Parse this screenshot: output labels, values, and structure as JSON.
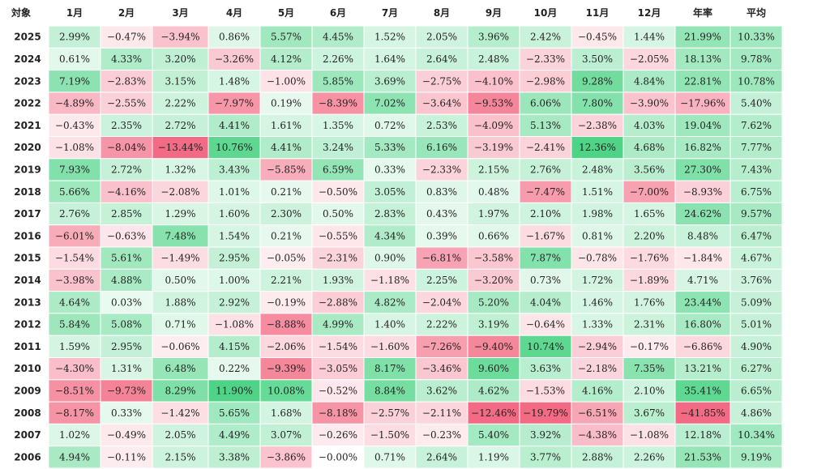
{
  "chart_data": {
    "type": "heatmap",
    "corner_label": "対象",
    "columns": [
      "1月",
      "2月",
      "3月",
      "4月",
      "5月",
      "6月",
      "7月",
      "8月",
      "9月",
      "10月",
      "11月",
      "12月",
      "年率",
      "平均"
    ],
    "rows": [
      {
        "year": "2025",
        "values": [
          "2.99%",
          "−0.47%",
          "−3.94%",
          "0.86%",
          "5.57%",
          "4.45%",
          "1.52%",
          "2.05%",
          "3.96%",
          "2.42%",
          "−0.45%",
          "1.44%",
          "21.99%",
          "10.33%"
        ]
      },
      {
        "year": "2024",
        "values": [
          "0.61%",
          "4.33%",
          "3.20%",
          "−3.26%",
          "4.12%",
          "2.26%",
          "1.64%",
          "2.64%",
          "2.48%",
          "−2.33%",
          "3.50%",
          "−2.05%",
          "18.13%",
          "9.78%"
        ]
      },
      {
        "year": "2023",
        "values": [
          "7.19%",
          "−2.83%",
          "3.15%",
          "1.48%",
          "−1.00%",
          "5.85%",
          "3.69%",
          "−2.75%",
          "−4.10%",
          "−2.98%",
          "9.28%",
          "4.84%",
          "22.81%",
          "10.78%"
        ]
      },
      {
        "year": "2022",
        "values": [
          "−4.89%",
          "−2.55%",
          "2.22%",
          "−7.97%",
          "0.19%",
          "−8.39%",
          "7.02%",
          "−3.64%",
          "−9.53%",
          "6.06%",
          "7.80%",
          "−3.90%",
          "−17.96%",
          "5.40%"
        ]
      },
      {
        "year": "2021",
        "values": [
          "−0.43%",
          "2.35%",
          "2.72%",
          "4.41%",
          "1.61%",
          "1.35%",
          "0.72%",
          "2.53%",
          "−4.09%",
          "5.13%",
          "−2.38%",
          "4.03%",
          "19.04%",
          "7.62%"
        ]
      },
      {
        "year": "2020",
        "values": [
          "−1.08%",
          "−8.04%",
          "−13.44%",
          "10.76%",
          "4.41%",
          "3.24%",
          "5.33%",
          "6.16%",
          "−3.19%",
          "−2.41%",
          "12.36%",
          "4.68%",
          "16.82%",
          "7.77%"
        ]
      },
      {
        "year": "2019",
        "values": [
          "7.93%",
          "2.72%",
          "1.32%",
          "3.43%",
          "−5.85%",
          "6.59%",
          "0.33%",
          "−2.33%",
          "2.15%",
          "2.76%",
          "2.48%",
          "3.56%",
          "27.30%",
          "7.43%"
        ]
      },
      {
        "year": "2018",
        "values": [
          "5.66%",
          "−4.16%",
          "−2.08%",
          "1.01%",
          "0.21%",
          "−0.50%",
          "3.05%",
          "0.83%",
          "0.48%",
          "−7.47%",
          "1.51%",
          "−7.00%",
          "−8.93%",
          "6.75%"
        ]
      },
      {
        "year": "2017",
        "values": [
          "2.76%",
          "2.85%",
          "1.29%",
          "1.60%",
          "2.30%",
          "0.50%",
          "2.83%",
          "0.43%",
          "1.97%",
          "2.10%",
          "1.98%",
          "1.65%",
          "24.62%",
          "9.57%"
        ]
      },
      {
        "year": "2016",
        "values": [
          "−6.01%",
          "−0.63%",
          "7.48%",
          "1.54%",
          "0.21%",
          "−0.55%",
          "4.34%",
          "0.39%",
          "0.66%",
          "−1.67%",
          "0.81%",
          "2.20%",
          "8.48%",
          "6.47%"
        ]
      },
      {
        "year": "2015",
        "values": [
          "−1.54%",
          "5.61%",
          "−1.49%",
          "2.95%",
          "−0.05%",
          "−2.31%",
          "0.90%",
          "−6.81%",
          "−3.58%",
          "7.87%",
          "−0.78%",
          "−1.76%",
          "−1.84%",
          "4.67%"
        ]
      },
      {
        "year": "2014",
        "values": [
          "−3.98%",
          "4.88%",
          "0.50%",
          "1.00%",
          "2.21%",
          "1.93%",
          "−1.18%",
          "2.25%",
          "−3.20%",
          "0.73%",
          "1.72%",
          "−1.89%",
          "4.71%",
          "3.76%"
        ]
      },
      {
        "year": "2013",
        "values": [
          "4.64%",
          "0.03%",
          "1.88%",
          "2.92%",
          "−0.19%",
          "−2.88%",
          "4.82%",
          "−2.04%",
          "5.20%",
          "4.04%",
          "1.46%",
          "1.76%",
          "23.44%",
          "5.09%"
        ]
      },
      {
        "year": "2012",
        "values": [
          "5.84%",
          "5.08%",
          "0.71%",
          "−1.08%",
          "−8.88%",
          "4.99%",
          "1.40%",
          "2.22%",
          "3.19%",
          "−0.64%",
          "1.33%",
          "2.31%",
          "16.80%",
          "5.01%"
        ]
      },
      {
        "year": "2011",
        "values": [
          "1.59%",
          "2.95%",
          "−0.06%",
          "4.15%",
          "−2.06%",
          "−1.54%",
          "−1.60%",
          "−7.26%",
          "−9.40%",
          "10.74%",
          "−2.94%",
          "−0.17%",
          "−6.86%",
          "4.90%"
        ]
      },
      {
        "year": "2010",
        "values": [
          "−4.30%",
          "1.31%",
          "6.48%",
          "0.22%",
          "−9.39%",
          "−3.05%",
          "8.17%",
          "−3.46%",
          "9.60%",
          "3.63%",
          "−2.18%",
          "7.35%",
          "13.21%",
          "6.27%"
        ]
      },
      {
        "year": "2009",
        "values": [
          "−8.51%",
          "−9.73%",
          "8.29%",
          "11.90%",
          "10.08%",
          "−0.52%",
          "8.84%",
          "3.62%",
          "4.62%",
          "−1.53%",
          "4.16%",
          "2.10%",
          "35.41%",
          "6.65%"
        ]
      },
      {
        "year": "2008",
        "values": [
          "−8.17%",
          "0.33%",
          "−1.42%",
          "5.65%",
          "1.68%",
          "−8.18%",
          "−2.57%",
          "−2.11%",
          "−12.46%",
          "−19.79%",
          "−6.51%",
          "3.67%",
          "−41.85%",
          "4.86%"
        ]
      },
      {
        "year": "2007",
        "values": [
          "1.02%",
          "−0.49%",
          "2.05%",
          "4.49%",
          "3.07%",
          "−0.26%",
          "−1.50%",
          "−0.23%",
          "5.40%",
          "3.92%",
          "−4.38%",
          "−1.08%",
          "12.18%",
          "10.34%"
        ]
      },
      {
        "year": "2006",
        "values": [
          "4.94%",
          "−0.11%",
          "2.15%",
          "3.38%",
          "−3.86%",
          "−0.00%",
          "0.71%",
          "2.64%",
          "1.19%",
          "3.77%",
          "2.88%",
          "2.26%",
          "21.53%",
          "9.19%"
        ]
      }
    ]
  },
  "colors": {
    "positive": "#2ecc71",
    "negative": "#f0506e",
    "text": "#222222",
    "grid": "#ffffff"
  }
}
